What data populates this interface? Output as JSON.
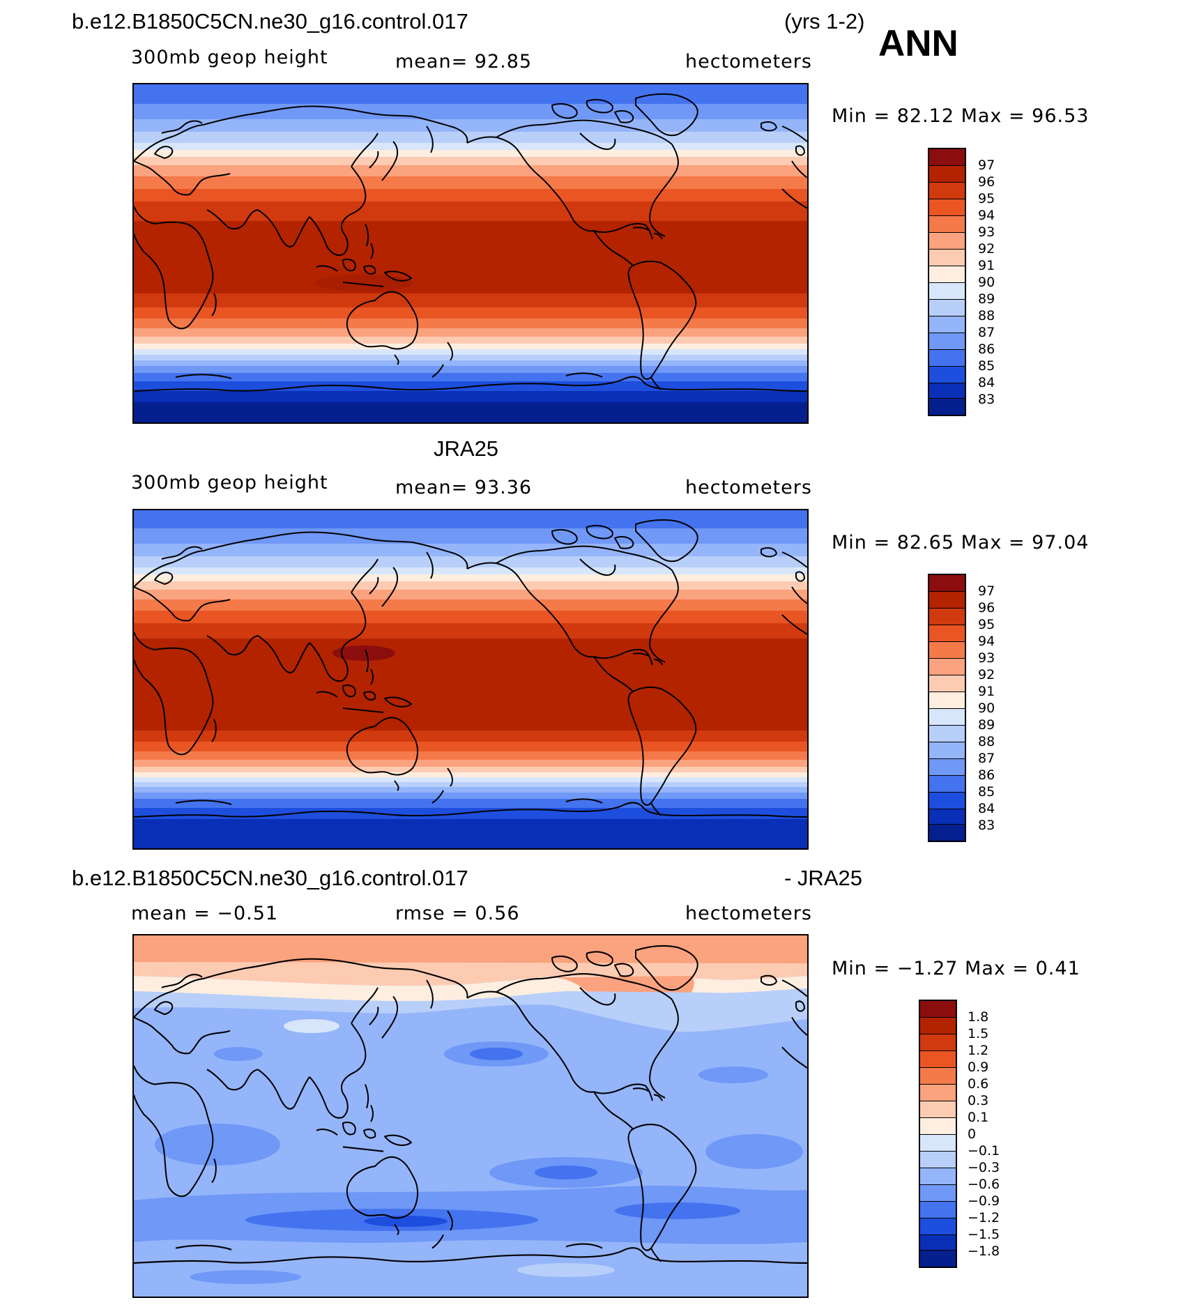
{
  "header": {
    "case_name": "b.e12.B1850C5CN.ne30_g16.control.017",
    "years": "(yrs 1-2)",
    "season": "ANN"
  },
  "panels": [
    {
      "title": "",
      "variable": "300mb geop height",
      "stat_left": "",
      "stat_mid": "mean=   92.85",
      "units": "hectometers",
      "minmax": "Min =   82.12  Max =   96.53",
      "colorbar_labels": [
        "97",
        "96",
        "95",
        "94",
        "93",
        "92",
        "91",
        "90",
        "89",
        "88",
        "87",
        "86",
        "85",
        "84",
        "83"
      ]
    },
    {
      "title": "JRA25",
      "variable": "300mb geop height",
      "stat_left": "",
      "stat_mid": "mean=   93.36",
      "units": "hectometers",
      "minmax": "Min =   82.65  Max =   97.04",
      "colorbar_labels": [
        "97",
        "96",
        "95",
        "94",
        "93",
        "92",
        "91",
        "90",
        "89",
        "88",
        "87",
        "86",
        "85",
        "84",
        "83"
      ]
    },
    {
      "title": "b.e12.B1850C5CN.ne30_g16.control.017",
      "title_right": "- JRA25",
      "variable": "",
      "stat_left": "mean =   −0.51",
      "stat_mid": "rmse =    0.56",
      "units": "hectometers",
      "minmax": "Min =   −1.27  Max =    0.41",
      "colorbar_labels": [
        "1.8",
        "1.5",
        "1.2",
        "0.9",
        "0.6",
        "0.3",
        "0.1",
        "0",
        "−0.1",
        "−0.3",
        "−0.6",
        "−0.9",
        "−1.2",
        "−1.5",
        "−1.8"
      ]
    }
  ],
  "colors": {
    "abs_scale": [
      "#8c0d0d",
      "#b32300",
      "#d13a0e",
      "#ea5524",
      "#f47a4a",
      "#fba27e",
      "#fdcbb2",
      "#fdeee0",
      "#d8e6fb",
      "#b8cffa",
      "#95b5fa",
      "#6f98f7",
      "#4473ef",
      "#1d4ede",
      "#0a2fb7",
      "#061f8f"
    ],
    "diff_scale": [
      "#8c0d0d",
      "#b32300",
      "#d13a0e",
      "#ea5524",
      "#f47a4a",
      "#fba27e",
      "#fdcbb2",
      "#fdeee0",
      "#d8e6fb",
      "#b8cffa",
      "#95b5fa",
      "#6f98f7",
      "#4473ef",
      "#1d4ede",
      "#0a2fb7",
      "#061f8f"
    ]
  }
}
